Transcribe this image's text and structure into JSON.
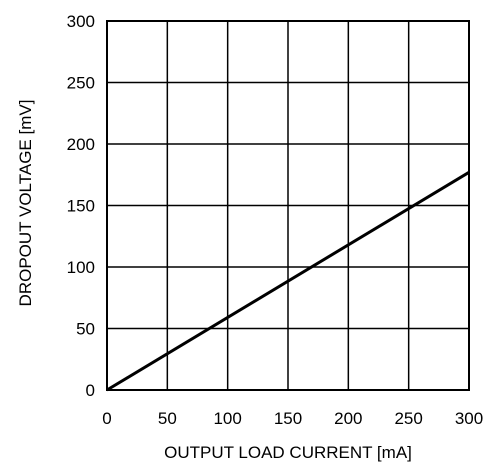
{
  "chart_data": {
    "type": "line",
    "title": "",
    "xlabel": "OUTPUT LOAD CURRENT [mA]",
    "ylabel": "DROPOUT VOLTAGE [mV]",
    "xlim": [
      0,
      300
    ],
    "ylim": [
      0,
      300
    ],
    "xticks": [
      0,
      50,
      100,
      150,
      200,
      250,
      300
    ],
    "yticks": [
      0,
      50,
      100,
      150,
      200,
      250,
      300
    ],
    "grid": true,
    "legend": "none",
    "series": [
      {
        "x": [
          0,
          300
        ],
        "y": [
          0,
          177
        ]
      }
    ],
    "colors": {
      "line": "#000000",
      "grid": "#000000",
      "frame": "#000000",
      "background": "#ffffff"
    }
  }
}
